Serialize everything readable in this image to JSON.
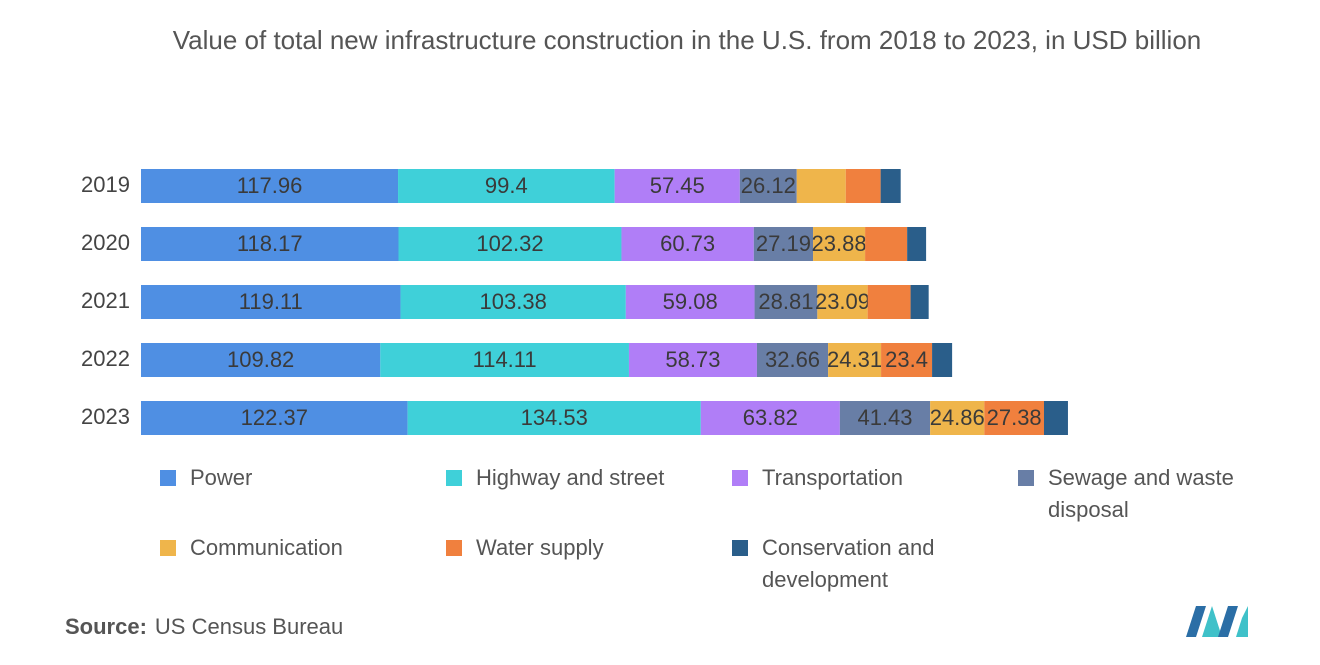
{
  "chart_data": {
    "type": "stacked-bar-horizontal",
    "title": "Value of total new infrastructure construction in the U.S. from 2018 to 2023, in USD billion",
    "categories": [
      "2019",
      "2020",
      "2021",
      "2022",
      "2023"
    ],
    "xlim": [
      0,
      430
    ],
    "series": [
      {
        "name": "Power",
        "color": "#4f8fe3",
        "values": [
          117.96,
          118.17,
          119.11,
          109.82,
          122.37
        ],
        "value_labels": [
          "117.96",
          "118.17",
          "119.11",
          "109.82",
          "122.37"
        ]
      },
      {
        "name": "Highway and street",
        "color": "#3fd0d9",
        "values": [
          99.4,
          102.32,
          103.38,
          114.11,
          134.53
        ],
        "value_labels": [
          "99.4",
          "102.32",
          "103.38",
          "114.11",
          "134.53"
        ]
      },
      {
        "name": "Transportation",
        "color": "#b07ef7",
        "values": [
          57.45,
          60.73,
          59.08,
          58.73,
          63.82
        ],
        "value_labels": [
          "57.45",
          "60.73",
          "59.08",
          "58.73",
          "63.82"
        ]
      },
      {
        "name": "Sewage and waste disposal",
        "color": "#687ea6",
        "values": [
          26.12,
          27.19,
          28.81,
          32.66,
          41.43
        ],
        "value_labels": [
          "26.12",
          "27.19",
          "28.81",
          "32.66",
          "41.43"
        ]
      },
      {
        "name": "Communication",
        "color": "#efb54b",
        "values": [
          22.5,
          23.88,
          23.09,
          24.31,
          24.86
        ],
        "value_labels": [
          null,
          "23.88",
          "23.09",
          "24.31",
          "24.86"
        ]
      },
      {
        "name": "Water supply",
        "color": "#f0803e",
        "values": [
          16.0,
          19.3,
          19.7,
          23.4,
          27.38
        ],
        "value_labels": [
          null,
          null,
          null,
          "23.4",
          "27.38"
        ]
      },
      {
        "name": "Conservation and development",
        "color": "#2a5e8a",
        "values": [
          9.2,
          8.7,
          8.3,
          9.2,
          11.0
        ],
        "value_labels": [
          null,
          null,
          null,
          null,
          null
        ]
      }
    ],
    "source_label": "Source:",
    "source": "US Census Bureau"
  }
}
